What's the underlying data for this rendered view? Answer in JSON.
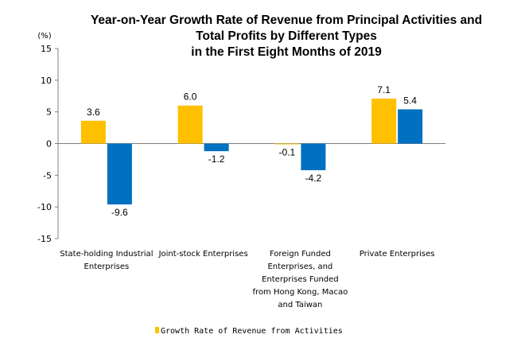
{
  "chart_data": {
    "type": "bar",
    "title_lines": [
      "Year-on-Year Growth Rate of Revenue from Principal Activities  and",
      "Total Profits by Different Types",
      "in the First Eight Months of 2019"
    ],
    "unit_label": "(%)",
    "ylim": [
      -15,
      15
    ],
    "yticks": [
      15,
      10,
      5,
      0,
      -5,
      -10,
      -15
    ],
    "categories": [
      [
        "State-holding Industrial",
        "Enterprises"
      ],
      [
        "Joint-stock Enterprises"
      ],
      [
        "Foreign Funded",
        "Enterprises, and",
        "Enterprises Funded",
        "from Hong Kong, Macao",
        "and Taiwan"
      ],
      [
        "Private Enterprises"
      ]
    ],
    "series": [
      {
        "name": "Growth Rate of Revenue from Activities",
        "color": "#FFC000",
        "values": [
          3.6,
          6.0,
          -0.1,
          7.1
        ],
        "labels": [
          "3.6",
          "6.0",
          "-0.1",
          "7.1"
        ]
      },
      {
        "color": "#0070C0",
        "values": [
          -9.6,
          -1.2,
          -4.2,
          5.4
        ],
        "labels": [
          "-9.6",
          "-1.2",
          "-4.2",
          "5.4"
        ]
      }
    ],
    "legend_position": "bottom"
  }
}
